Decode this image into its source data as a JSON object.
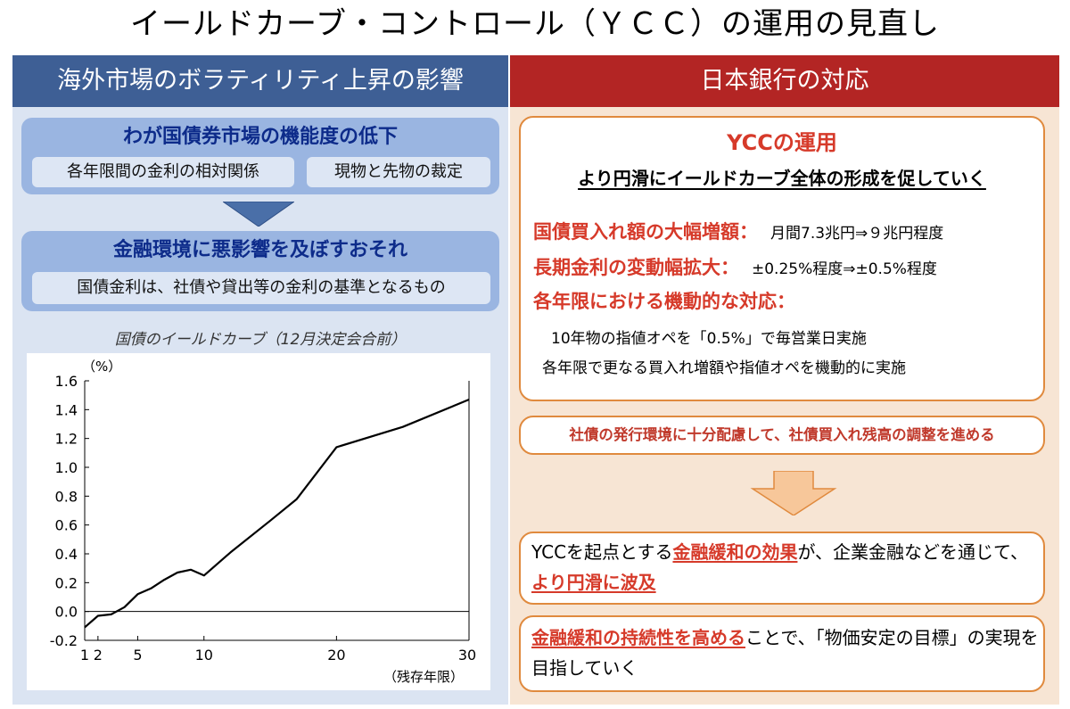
{
  "title": "イールドカーブ・コントロール（ＹＣＣ）の運用の見直し",
  "left": {
    "header": "海外市場のボラティリティ上昇の影響",
    "box1": {
      "title": "わが国債券市場の機能度の低下",
      "chips": [
        "各年限間の金利の相対関係",
        "現物と先物の裁定"
      ]
    },
    "box2": {
      "title": "金融環境に悪影響を及ぼすおそれ",
      "chip": "国債金利は、社債や貸出等の金利の基準となるもの"
    }
  },
  "chart_data": {
    "type": "line",
    "title": "国債のイールドカーブ（12月決定会合前）",
    "ylabel": "（%）",
    "xlabel": "（残存年限）",
    "ylim": [
      -0.2,
      1.6
    ],
    "xlim": [
      1,
      30
    ],
    "yticks": [
      "1.6",
      "1.4",
      "1.2",
      "1.0",
      "0.8",
      "0.6",
      "0.4",
      "0.2",
      "0.0",
      "-0.2"
    ],
    "ytick_values": [
      1.6,
      1.4,
      1.2,
      1.0,
      0.8,
      0.6,
      0.4,
      0.2,
      0.0,
      -0.2
    ],
    "xticks": [
      "1",
      "2",
      "5",
      "10",
      "20",
      "30"
    ],
    "xtick_values": [
      1,
      2,
      5,
      10,
      20,
      30
    ],
    "series": [
      {
        "x": [
          1,
          2,
          3,
          4,
          5,
          6,
          7,
          8,
          9,
          10,
          12,
          15,
          17,
          20,
          25,
          30
        ],
        "values": [
          -0.11,
          -0.03,
          -0.02,
          0.03,
          0.12,
          0.16,
          0.22,
          0.27,
          0.29,
          0.25,
          0.41,
          0.63,
          0.78,
          1.14,
          1.28,
          1.47
        ]
      }
    ]
  },
  "right": {
    "header": "日本銀行の対応",
    "ycc": {
      "title": "YCCの運用",
      "subtitle": "より円滑にイールドカーブ全体の形成を促していく",
      "rows": [
        {
          "label": "国債買入れ額の大幅増額：",
          "value": "月間7.3兆円⇒９兆円程度"
        },
        {
          "label": "長期金利の変動幅拡大：",
          "value": "±0.25%程度⇒±0.5%程度"
        },
        {
          "label": "各年限における機動的な対応：",
          "value": ""
        }
      ],
      "details": [
        "10年物の指値オペを「0.5%」で毎営業日実施",
        "各年限で更なる買入れ増額や指値オペを機動的に実施"
      ]
    },
    "bond": "社債の発行環境に十分配慮して、社債買入れ残高の調整を進める",
    "result1": {
      "pre": "YCCを起点とする",
      "hl1": "金融緩和の効果",
      "mid": "が、企業金融などを通じて、",
      "hl2": "より円滑に波及",
      "post": ""
    },
    "result2": {
      "hl": "金融緩和の持続性を高める",
      "post": "ことで、「物価安定の目標」の実現を目指していく"
    }
  },
  "colors": {
    "left_header": "#3e5f95",
    "left_panel": "#dbe4f2",
    "blue_box": "#9ab5e1",
    "right_header": "#b32524",
    "right_panel": "#f7e5d4",
    "accent_red": "#d63a2a",
    "orange_border": "#e08a3e"
  }
}
